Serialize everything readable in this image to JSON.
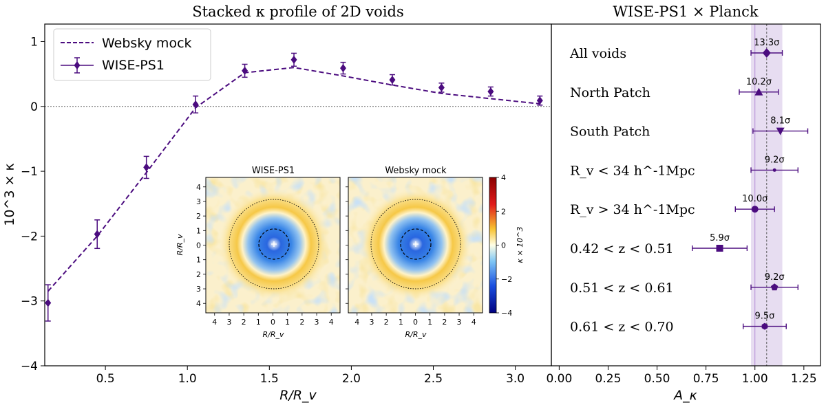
{
  "colors": {
    "main": "#4b0c7f",
    "band": "#c9b3e0",
    "axis": "#000000",
    "zero_line": "#444444"
  },
  "chart_data": [
    {
      "id": "profile",
      "type": "line",
      "title": "Stacked κ profile of 2D voids",
      "xlabel": "R/R_v",
      "ylabel": "10^3 × κ",
      "xlim": [
        0.13,
        3.22
      ],
      "ylim": [
        -4,
        1.27
      ],
      "xticks": [
        0.5,
        1.0,
        1.5,
        2.0,
        2.5,
        3.0
      ],
      "xtick_labels": [
        "0.5",
        "1.0",
        "1.5",
        "2.0",
        "2.5",
        "3.0"
      ],
      "yticks": [
        -4,
        -3,
        -2,
        -1,
        0,
        1
      ],
      "ytick_labels": [
        "−4",
        "−3",
        "−2",
        "−1",
        "0",
        "1"
      ],
      "legend": {
        "location": "top-left",
        "entries": [
          "Websky mock",
          "WISE-PS1"
        ]
      },
      "series": [
        {
          "name": "Websky mock",
          "style": "dashed",
          "x": [
            0.15,
            0.45,
            0.75,
            1.05,
            1.35,
            1.65,
            1.95,
            2.25,
            2.55,
            2.85,
            3.15
          ],
          "y": [
            -2.85,
            -2.0,
            -1.02,
            -0.02,
            0.52,
            0.6,
            0.47,
            0.33,
            0.2,
            0.12,
            0.04
          ]
        },
        {
          "name": "WISE-PS1",
          "style": "diamond-errorbar",
          "x": [
            0.15,
            0.45,
            0.75,
            1.05,
            1.35,
            1.65,
            1.95,
            2.25,
            2.55,
            2.85,
            3.15
          ],
          "y": [
            -3.03,
            -1.97,
            -0.94,
            0.03,
            0.55,
            0.72,
            0.59,
            0.41,
            0.29,
            0.23,
            0.09
          ],
          "err": [
            0.28,
            0.22,
            0.17,
            0.13,
            0.1,
            0.1,
            0.09,
            0.08,
            0.07,
            0.07,
            0.07
          ]
        }
      ]
    },
    {
      "id": "amplitudes",
      "type": "scatter",
      "title": "WISE-PS1 × Planck",
      "xlabel": "A_κ",
      "xlim": [
        -0.04,
        1.335
      ],
      "xticks": [
        0.0,
        0.25,
        0.5,
        0.75,
        1.0,
        1.25
      ],
      "xtick_labels": [
        "0.00",
        "0.25",
        "0.50",
        "0.75",
        "1.00",
        "1.25"
      ],
      "reference_line": 1.0,
      "band": {
        "center": 1.06,
        "lo": 0.98,
        "hi": 1.14
      },
      "rows": [
        {
          "label": "All voids",
          "value": 1.06,
          "err": 0.08,
          "sig": "13.3σ",
          "marker": "diamond"
        },
        {
          "label": "North Patch",
          "value": 1.02,
          "err": 0.1,
          "sig": "10.2σ",
          "marker": "triangle-up"
        },
        {
          "label": "South Patch",
          "value": 1.13,
          "err": 0.14,
          "sig": "8.1σ",
          "marker": "triangle-down"
        },
        {
          "label": "R_v < 34 h^-1Mpc",
          "value": 1.1,
          "err": 0.12,
          "sig": "9.2σ",
          "marker": "dot"
        },
        {
          "label": "R_v > 34 h^-1Mpc",
          "value": 1.0,
          "err": 0.1,
          "sig": "10.0σ",
          "marker": "circle"
        },
        {
          "label": "0.42 < z < 0.51",
          "value": 0.82,
          "err": 0.14,
          "sig": "5.9σ",
          "marker": "square"
        },
        {
          "label": "0.51 < z < 0.61",
          "value": 1.1,
          "err": 0.12,
          "sig": "9.2σ",
          "marker": "pentagon"
        },
        {
          "label": "0.61 < z < 0.70",
          "value": 1.05,
          "err": 0.11,
          "sig": "9.5σ",
          "marker": "hexagon"
        }
      ]
    },
    {
      "id": "inset",
      "type": "heatmap",
      "panels": [
        "WISE-PS1",
        "Websky mock"
      ],
      "xlabel": "R/R_v",
      "ylabel": "R/R_v",
      "ticks": [
        "4",
        "3",
        "2",
        "1",
        "0",
        "1",
        "2",
        "3",
        "4"
      ],
      "colorbar": {
        "label": "κ × 10^3",
        "min": -4,
        "max": 4,
        "ticks": [
          "4",
          "2",
          "0",
          "−2",
          "−4"
        ]
      }
    }
  ]
}
